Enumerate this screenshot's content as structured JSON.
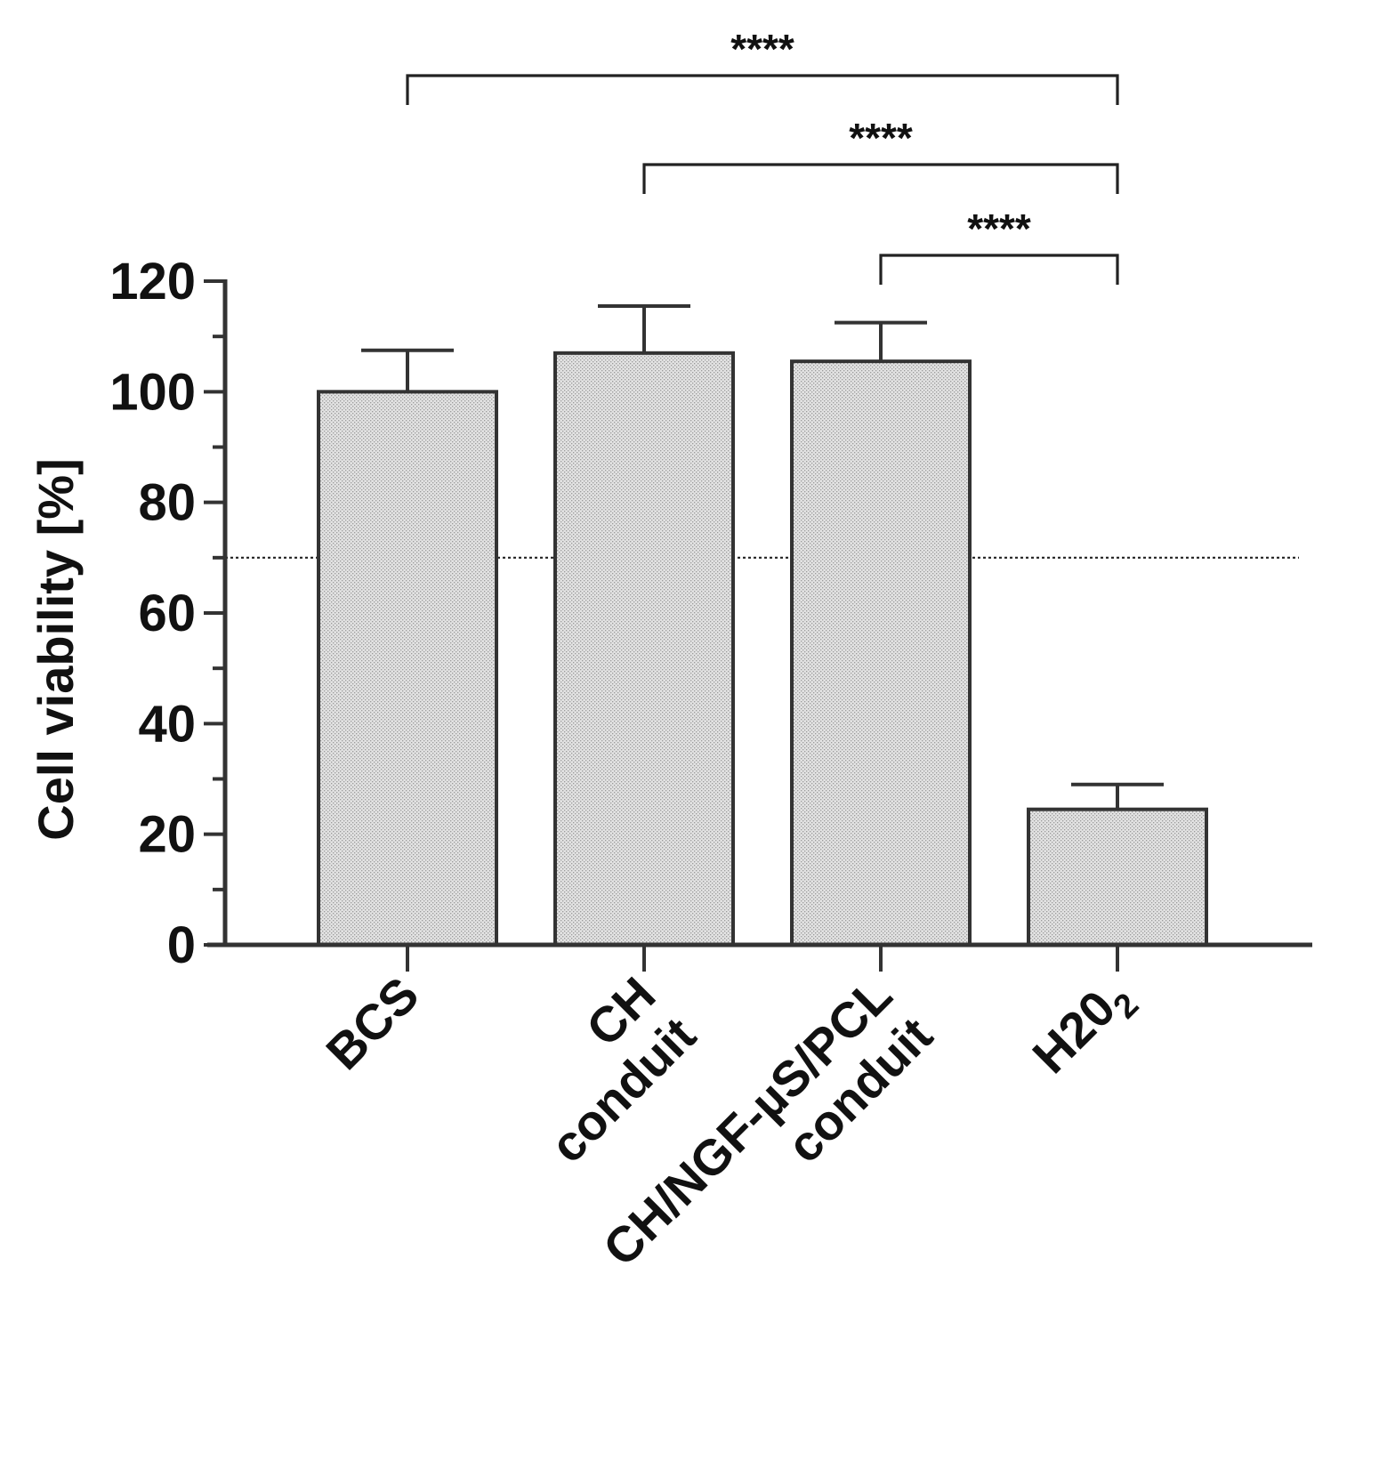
{
  "chart_data": {
    "type": "bar",
    "ylabel": "Cell viability [%]",
    "ylim": [
      0,
      120
    ],
    "yticks": [
      0,
      20,
      40,
      60,
      80,
      100,
      120
    ],
    "minor_tick_step": 10,
    "reference_line": 70,
    "categories": [
      {
        "lines": [
          "BCS"
        ]
      },
      {
        "lines": [
          "CH",
          "conduit"
        ]
      },
      {
        "lines": [
          "CH/NGF-µS/PCL",
          "conduit"
        ]
      },
      {
        "lines": [
          "H20",
          "2"
        ],
        "subscript_line": 1
      }
    ],
    "values": [
      100,
      107,
      105.5,
      24.5
    ],
    "errors": [
      7.5,
      8.5,
      7,
      4.5
    ],
    "significance": [
      {
        "from": 0,
        "to": 3,
        "label": "****"
      },
      {
        "from": 1,
        "to": 3,
        "label": "****"
      },
      {
        "from": 2,
        "to": 3,
        "label": "****"
      }
    ],
    "grid": false,
    "legend": "none",
    "colors": {
      "bar_fill": "#e0e0e0",
      "bar_stipple": "#9a9a9a",
      "bar_edge": "#333333",
      "axis": "#333333"
    }
  }
}
